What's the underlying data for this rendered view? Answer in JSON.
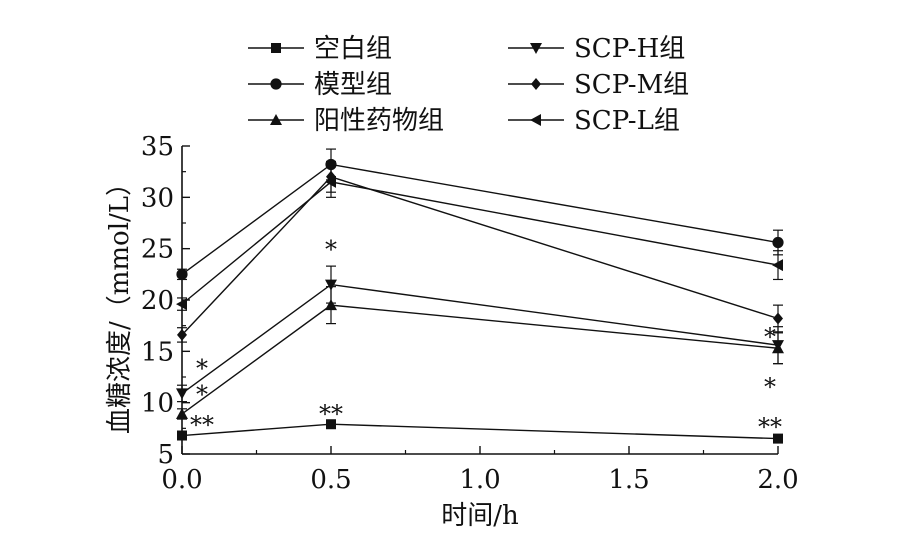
{
  "chart_data": {
    "type": "line",
    "xlabel": "时间/h",
    "ylabel": "血糖浓度/（mmol/L）",
    "x": [
      0.0,
      0.5,
      2.0
    ],
    "xlim": [
      0.0,
      2.0
    ],
    "ylim": [
      5,
      35
    ],
    "xticks": [
      "0.0",
      "0.5",
      "1.0",
      "1.5",
      "2.0"
    ],
    "yticks": [
      "5",
      "10",
      "15",
      "20",
      "25",
      "30",
      "35"
    ],
    "grid": false,
    "legend_position": "top",
    "series": [
      {
        "name": "空白组",
        "marker": "square",
        "values": [
          6.8,
          7.9,
          6.5
        ],
        "errors": [
          0.3,
          0.4,
          0.3
        ]
      },
      {
        "name": "模型组",
        "marker": "circle",
        "values": [
          22.5,
          33.2,
          25.6
        ],
        "errors": [
          0.5,
          1.5,
          1.2
        ]
      },
      {
        "name": "阳性药物组",
        "marker": "triangle-up",
        "values": [
          8.9,
          19.5,
          15.3
        ],
        "errors": [
          0.5,
          1.8,
          1.5
        ]
      },
      {
        "name": "SCP-H组",
        "marker": "triangle-down",
        "values": [
          10.9,
          21.5,
          15.6
        ],
        "errors": [
          0.8,
          1.8,
          1.8
        ]
      },
      {
        "name": "SCP-M组",
        "marker": "diamond",
        "values": [
          16.6,
          32.0,
          18.2
        ],
        "errors": [
          0.7,
          1.5,
          1.3
        ]
      },
      {
        "name": "SCP-L组",
        "marker": "triangle-left",
        "values": [
          19.6,
          31.5,
          23.4
        ],
        "errors": [
          0.6,
          1.5,
          1.4
        ]
      }
    ],
    "annotations": [
      {
        "text": "*",
        "x": 0.0,
        "y": 13.7
      },
      {
        "text": "*",
        "x": 0.0,
        "y": 11.2
      },
      {
        "text": "**",
        "x": 0.0,
        "y": 8.2
      },
      {
        "text": "*",
        "x": 0.5,
        "y": 25.3
      },
      {
        "text": "**",
        "x": 0.5,
        "y": 9.3
      },
      {
        "text": "*",
        "x": 2.0,
        "y": 16.8
      },
      {
        "text": "*",
        "x": 2.0,
        "y": 11.9
      },
      {
        "text": "**",
        "x": 2.0,
        "y": 8.0
      }
    ]
  }
}
